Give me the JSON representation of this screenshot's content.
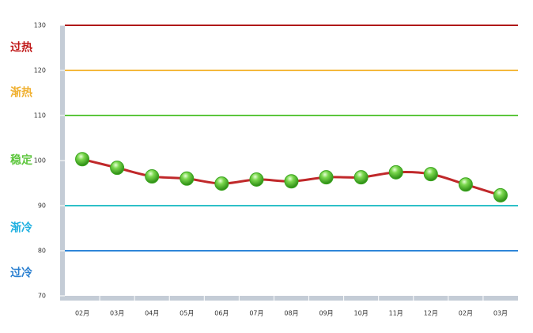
{
  "chart_data": {
    "type": "line",
    "categories": [
      "02月",
      "03月",
      "04月",
      "05月",
      "06月",
      "07月",
      "08月",
      "09月",
      "10月",
      "11月",
      "12月",
      "02月",
      "03月"
    ],
    "values": [
      100.3,
      98.4,
      96.5,
      96.0,
      94.9,
      95.8,
      95.4,
      96.3,
      96.3,
      97.4,
      97.0,
      94.7,
      92.3
    ],
    "color": "#c0282a",
    "marker_color": "#3aa51e",
    "ylim": [
      70,
      130
    ],
    "yticks": [
      70,
      80,
      90,
      100,
      110,
      120,
      130
    ],
    "reference_lines": [
      {
        "value": 130,
        "color": "#b01818"
      },
      {
        "value": 120,
        "color": "#f4b83c"
      },
      {
        "value": 110,
        "color": "#5cc63c"
      },
      {
        "value": 90,
        "color": "#2ec0c8"
      },
      {
        "value": 80,
        "color": "#2f86d8"
      }
    ],
    "zones": [
      {
        "label": "过热",
        "color": "#c01818",
        "range": [
          120,
          130
        ]
      },
      {
        "label": "渐热",
        "color": "#f0b030",
        "range": [
          110,
          120
        ]
      },
      {
        "label": "稳定",
        "color": "#5cc63c",
        "range": [
          90,
          110
        ]
      },
      {
        "label": "渐冷",
        "color": "#1fb0e0",
        "range": [
          80,
          90
        ]
      },
      {
        "label": "过冷",
        "color": "#2a7fd0",
        "range": [
          70,
          80
        ]
      }
    ]
  }
}
